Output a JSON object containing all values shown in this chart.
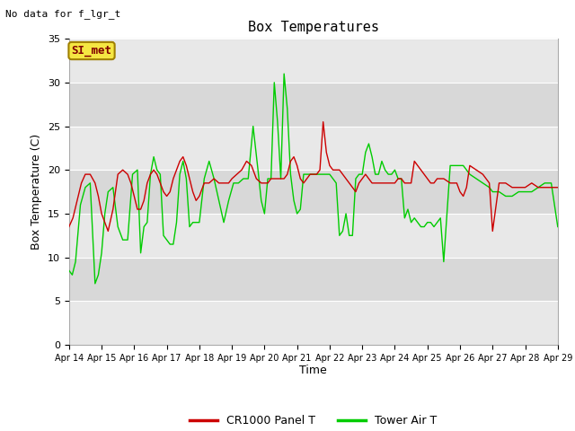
{
  "title": "Box Temperatures",
  "xlabel": "Time",
  "ylabel": "Box Temperature (C)",
  "top_left_text": "No data for f_lgr_t",
  "annotation_text": "SI_met",
  "ylim": [
    0,
    35
  ],
  "yticks": [
    0,
    5,
    10,
    15,
    20,
    25,
    30,
    35
  ],
  "x_labels": [
    "Apr 14",
    "Apr 15",
    "Apr 16",
    "Apr 17",
    "Apr 18",
    "Apr 19",
    "Apr 20",
    "Apr 21",
    "Apr 22",
    "Apr 23",
    "Apr 24",
    "Apr 25",
    "Apr 26",
    "Apr 27",
    "Apr 28",
    "Apr 29"
  ],
  "fig_bg_color": "#ffffff",
  "plot_bg_color": "#f0f0f0",
  "band_colors": [
    "#e8e8e8",
    "#d8d8d8"
  ],
  "line1_color": "#cc0000",
  "line2_color": "#00cc00",
  "line1_label": "CR1000 Panel T",
  "line2_label": "Tower Air T",
  "red_x": [
    0,
    0.12,
    0.25,
    0.38,
    0.5,
    0.65,
    0.8,
    0.9,
    1.0,
    1.1,
    1.2,
    1.35,
    1.5,
    1.65,
    1.8,
    1.9,
    2.0,
    2.1,
    2.2,
    2.3,
    2.4,
    2.5,
    2.6,
    2.7,
    2.8,
    2.9,
    3.0,
    3.1,
    3.2,
    3.3,
    3.4,
    3.5,
    3.6,
    3.7,
    3.8,
    3.9,
    4.0,
    4.15,
    4.3,
    4.45,
    4.6,
    4.75,
    4.9,
    5.0,
    5.15,
    5.3,
    5.45,
    5.6,
    5.75,
    5.9,
    6.0,
    6.1,
    6.2,
    6.3,
    6.4,
    6.5,
    6.6,
    6.7,
    6.8,
    6.9,
    7.0,
    7.1,
    7.2,
    7.3,
    7.4,
    7.5,
    7.6,
    7.7,
    7.8,
    7.9,
    8.0,
    8.1,
    8.2,
    8.3,
    8.4,
    8.5,
    8.6,
    8.7,
    8.8,
    8.9,
    9.0,
    9.1,
    9.2,
    9.3,
    9.4,
    9.5,
    9.6,
    9.7,
    9.8,
    9.9,
    10.0,
    10.1,
    10.2,
    10.3,
    10.4,
    10.5,
    10.6,
    10.7,
    10.8,
    10.9,
    11.0,
    11.1,
    11.2,
    11.3,
    11.5,
    11.7,
    11.9,
    12.0,
    12.1,
    12.2,
    12.3,
    12.5,
    12.7,
    12.9,
    13.0,
    13.2,
    13.4,
    13.6,
    13.8,
    14.0,
    14.2,
    14.4,
    14.6,
    14.8,
    15.0
  ],
  "red_y": [
    13.5,
    14.5,
    16.5,
    18.5,
    19.5,
    19.5,
    18.5,
    17.0,
    15.0,
    14.0,
    13.0,
    15.5,
    19.5,
    20.0,
    19.5,
    18.5,
    17.0,
    15.5,
    15.5,
    16.5,
    18.5,
    19.5,
    20.0,
    19.5,
    18.5,
    17.5,
    17.0,
    17.5,
    19.0,
    20.0,
    21.0,
    21.5,
    20.5,
    19.0,
    17.5,
    16.5,
    17.0,
    18.5,
    18.5,
    19.0,
    18.5,
    18.5,
    18.5,
    19.0,
    19.5,
    20.0,
    21.0,
    20.5,
    19.0,
    18.5,
    18.5,
    18.5,
    19.0,
    19.0,
    19.0,
    19.0,
    19.0,
    19.5,
    21.0,
    21.5,
    20.5,
    19.0,
    18.5,
    19.0,
    19.5,
    19.5,
    19.5,
    20.0,
    25.5,
    22.0,
    20.5,
    20.0,
    20.0,
    20.0,
    19.5,
    19.0,
    18.5,
    18.0,
    17.5,
    18.5,
    19.0,
    19.5,
    19.0,
    18.5,
    18.5,
    18.5,
    18.5,
    18.5,
    18.5,
    18.5,
    18.5,
    19.0,
    19.0,
    18.5,
    18.5,
    18.5,
    21.0,
    20.5,
    20.0,
    19.5,
    19.0,
    18.5,
    18.5,
    19.0,
    19.0,
    18.5,
    18.5,
    17.5,
    17.0,
    18.0,
    20.5,
    20.0,
    19.5,
    18.5,
    13.0,
    18.5,
    18.5,
    18.0,
    18.0,
    18.0,
    18.5,
    18.0,
    18.0,
    18.0,
    18.0
  ],
  "green_x": [
    0,
    0.1,
    0.2,
    0.35,
    0.5,
    0.65,
    0.8,
    0.9,
    1.0,
    1.1,
    1.2,
    1.35,
    1.5,
    1.65,
    1.8,
    1.95,
    2.1,
    2.2,
    2.3,
    2.4,
    2.5,
    2.6,
    2.7,
    2.8,
    2.9,
    3.0,
    3.1,
    3.2,
    3.3,
    3.4,
    3.5,
    3.6,
    3.7,
    3.8,
    3.9,
    4.0,
    4.15,
    4.3,
    4.45,
    4.6,
    4.75,
    4.9,
    5.05,
    5.2,
    5.35,
    5.5,
    5.65,
    5.8,
    5.9,
    6.0,
    6.1,
    6.2,
    6.3,
    6.4,
    6.5,
    6.6,
    6.7,
    6.8,
    6.9,
    7.0,
    7.1,
    7.2,
    7.3,
    7.4,
    7.5,
    7.6,
    7.7,
    7.8,
    7.9,
    8.0,
    8.1,
    8.2,
    8.3,
    8.4,
    8.5,
    8.6,
    8.7,
    8.8,
    8.9,
    9.0,
    9.1,
    9.2,
    9.3,
    9.4,
    9.5,
    9.6,
    9.7,
    9.8,
    9.9,
    10.0,
    10.1,
    10.2,
    10.3,
    10.4,
    10.5,
    10.6,
    10.7,
    10.8,
    10.9,
    11.0,
    11.1,
    11.2,
    11.3,
    11.4,
    11.5,
    11.7,
    11.9,
    12.0,
    12.1,
    12.2,
    12.3,
    12.5,
    12.7,
    12.9,
    13.0,
    13.2,
    13.4,
    13.6,
    13.8,
    14.0,
    14.2,
    14.4,
    14.6,
    14.8,
    15.0
  ],
  "green_y": [
    8.5,
    8.0,
    9.5,
    16.0,
    18.0,
    18.5,
    7.0,
    8.0,
    10.5,
    15.0,
    17.5,
    18.0,
    13.5,
    12.0,
    12.0,
    19.5,
    20.0,
    10.5,
    13.5,
    14.0,
    19.5,
    21.5,
    20.0,
    19.5,
    12.5,
    12.0,
    11.5,
    11.5,
    14.0,
    19.5,
    21.0,
    19.0,
    13.5,
    14.0,
    14.0,
    14.0,
    19.0,
    21.0,
    19.0,
    16.5,
    14.0,
    16.5,
    18.5,
    18.5,
    19.0,
    19.0,
    25.0,
    20.0,
    16.5,
    15.0,
    19.0,
    19.0,
    30.0,
    25.5,
    19.0,
    31.0,
    27.0,
    19.5,
    16.5,
    15.0,
    15.5,
    19.5,
    19.5,
    19.5,
    19.5,
    19.5,
    19.5,
    19.5,
    19.5,
    19.5,
    19.0,
    18.5,
    12.5,
    13.0,
    15.0,
    12.5,
    12.5,
    19.0,
    19.5,
    19.5,
    22.0,
    23.0,
    21.5,
    19.5,
    19.5,
    21.0,
    20.0,
    19.5,
    19.5,
    20.0,
    19.0,
    19.0,
    14.5,
    15.5,
    14.0,
    14.5,
    14.0,
    13.5,
    13.5,
    14.0,
    14.0,
    13.5,
    14.0,
    14.5,
    9.5,
    20.5,
    20.5,
    20.5,
    20.5,
    20.0,
    19.5,
    19.0,
    18.5,
    18.0,
    17.5,
    17.5,
    17.0,
    17.0,
    17.5,
    17.5,
    17.5,
    18.0,
    18.5,
    18.5,
    13.5
  ]
}
